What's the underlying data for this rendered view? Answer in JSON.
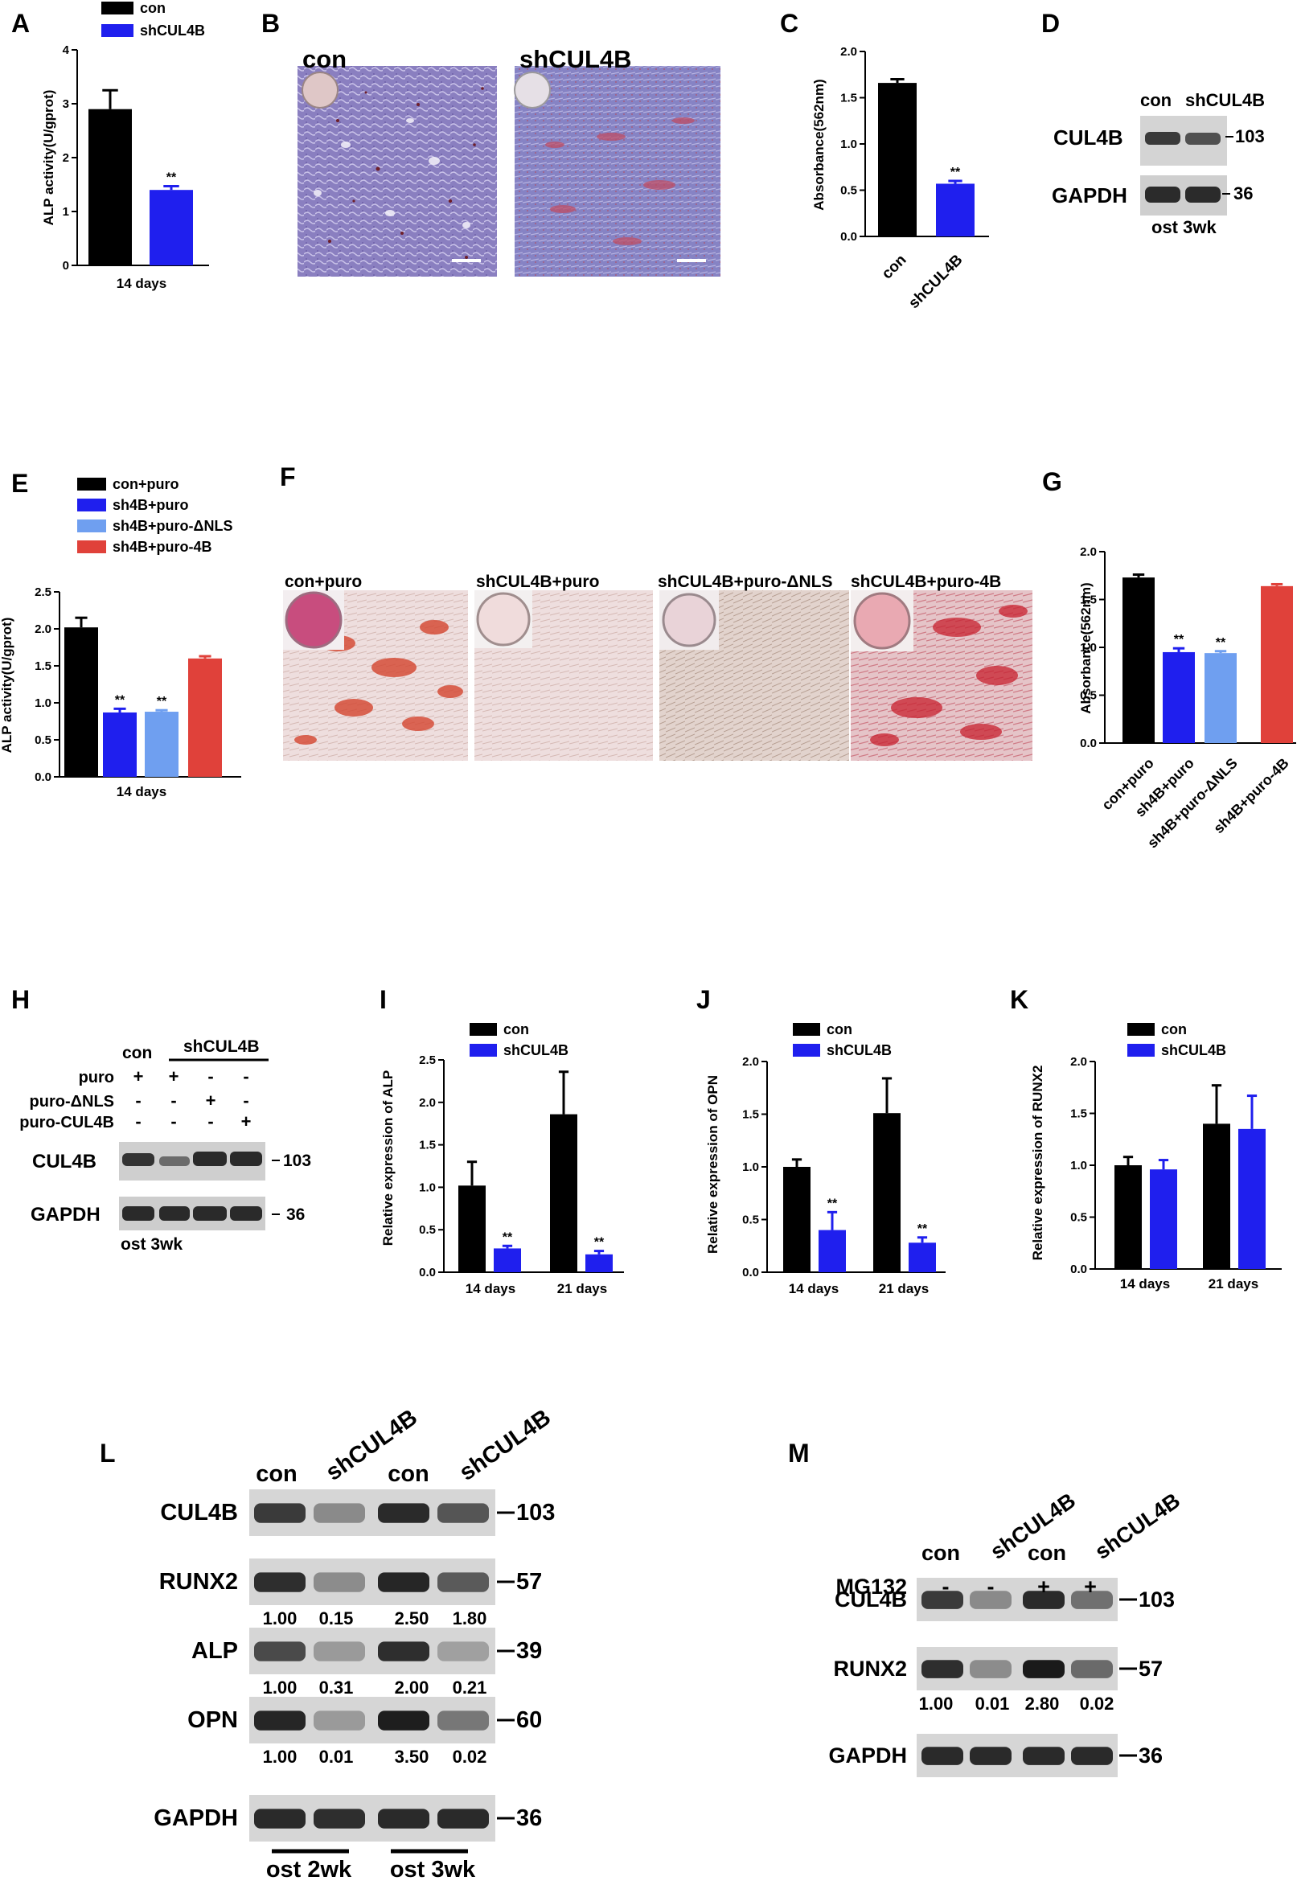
{
  "panels": {
    "A": {
      "letter": "A",
      "legend": [
        "con",
        "shCUL4B"
      ],
      "ylabel": "ALP activity(U/gprot)",
      "xlabel": "14 days",
      "sig": "**"
    },
    "B": {
      "letter": "B",
      "labels": [
        "con",
        "shCUL4B"
      ]
    },
    "C": {
      "letter": "C",
      "ylabel": "Absorbance(562nm)",
      "sig": "**"
    },
    "D": {
      "letter": "D",
      "lanes": [
        "con",
        "shCUL4B"
      ],
      "rows": [
        "CUL4B",
        "GAPDH"
      ],
      "markers": [
        "103",
        "36"
      ],
      "footer": "ost 3wk"
    },
    "E": {
      "letter": "E",
      "legend": [
        "con+puro",
        "sh4B+puro",
        "sh4B+puro-ΔNLS",
        "sh4B+puro-4B"
      ],
      "ylabel": "ALP activity(U/gprot)",
      "xlabel": "14 days",
      "sig": "**"
    },
    "F": {
      "letter": "F",
      "labels": [
        "con+puro",
        "shCUL4B+puro",
        "shCUL4B+puro-ΔNLS",
        "shCUL4B+puro-4B"
      ]
    },
    "G": {
      "letter": "G",
      "ylabel": "Absorbance(562nm)",
      "sig": "**"
    },
    "H": {
      "letter": "H",
      "header_con": "con",
      "header_sh": "shCUL4B",
      "conditions": [
        {
          "label": "puro",
          "marks": [
            "+",
            "+",
            "-",
            "-"
          ]
        },
        {
          "label": "puro-ΔNLS",
          "marks": [
            "-",
            "-",
            "+",
            "-"
          ]
        },
        {
          "label": "puro-CUL4B",
          "marks": [
            "-",
            "-",
            "-",
            "+"
          ]
        }
      ],
      "rows": [
        "CUL4B",
        "GAPDH"
      ],
      "markers": [
        "103",
        "36"
      ],
      "footer": "ost 3wk"
    },
    "I": {
      "letter": "I",
      "legend": [
        "con",
        "shCUL4B"
      ],
      "ylabel": [
        "Relative expression",
        "of ALP"
      ],
      "sig": "**"
    },
    "J": {
      "letter": "J",
      "legend": [
        "con",
        "shCUL4B"
      ],
      "ylabel": [
        "Relative expression",
        "of OPN"
      ],
      "sig": "**"
    },
    "K": {
      "letter": "K",
      "legend": [
        "con",
        "shCUL4B"
      ],
      "ylabel": [
        "Relative expression",
        "of RUNX2"
      ]
    },
    "L": {
      "letter": "L",
      "lanes": [
        "con",
        "shCUL4B",
        "con",
        "shCUL4B"
      ],
      "rows": [
        {
          "label": "CUL4B",
          "marker": "103",
          "values": []
        },
        {
          "label": "RUNX2",
          "marker": "57",
          "values": [
            "1.00",
            "0.15",
            "2.50",
            "1.80"
          ]
        },
        {
          "label": "ALP",
          "marker": "39",
          "values": [
            "1.00",
            "0.31",
            "2.00",
            "0.21"
          ]
        },
        {
          "label": "OPN",
          "marker": "60",
          "values": [
            "1.00",
            "0.01",
            "3.50",
            "0.02"
          ]
        },
        {
          "label": "GAPDH",
          "marker": "36",
          "values": []
        }
      ],
      "groups": [
        "ost 2wk",
        "ost 3wk"
      ]
    },
    "M": {
      "letter": "M",
      "lanes": [
        "con",
        "shCUL4B",
        "con",
        "shCUL4B"
      ],
      "mg132_label": "MG132",
      "mg132": [
        "-",
        "-",
        "+",
        "+"
      ],
      "rows": [
        {
          "label": "CUL4B",
          "marker": "103",
          "values": []
        },
        {
          "label": "RUNX2",
          "marker": "57",
          "values": [
            "1.00",
            "0.01",
            "2.80",
            "0.02"
          ]
        },
        {
          "label": "GAPDH",
          "marker": "36",
          "values": []
        }
      ]
    }
  },
  "chart_data": [
    {
      "panel": "A",
      "type": "bar",
      "categories": [
        "14 days"
      ],
      "series": [
        {
          "name": "con",
          "values": [
            2.9
          ],
          "error": [
            0.35
          ]
        },
        {
          "name": "shCUL4B",
          "values": [
            1.4
          ],
          "error": [
            0.07
          ]
        }
      ],
      "ylabel": "ALP activity(U/gprot)",
      "ylim": [
        0,
        4
      ],
      "yticks": [
        "0",
        "1",
        "2",
        "3",
        "4"
      ],
      "colors": [
        "#000000",
        "#1f1fee"
      ]
    },
    {
      "panel": "C",
      "type": "bar",
      "categories": [
        "con",
        "shCUL4B"
      ],
      "values": [
        1.66,
        0.57
      ],
      "error": [
        0.04,
        0.03
      ],
      "ylabel": "Absorbance(562nm)",
      "ylim": [
        0,
        2.0
      ],
      "yticks": [
        "0.0",
        "0.5",
        "1.0",
        "1.5",
        "2.0"
      ],
      "colors": [
        "#000000",
        "#1f1fee"
      ]
    },
    {
      "panel": "E",
      "type": "bar",
      "categories": [
        "14 days"
      ],
      "series": [
        {
          "name": "con+puro",
          "values": [
            2.02
          ],
          "error": [
            0.13
          ]
        },
        {
          "name": "sh4B+puro",
          "values": [
            0.87
          ],
          "error": [
            0.05
          ]
        },
        {
          "name": "sh4B+puro-ΔNLS",
          "values": [
            0.88
          ],
          "error": [
            0.02
          ]
        },
        {
          "name": "sh4B+puro-4B",
          "values": [
            1.6
          ],
          "error": [
            0.03
          ]
        }
      ],
      "ylabel": "ALP activity(U/gprot)",
      "ylim": [
        0,
        2.5
      ],
      "yticks": [
        "0.0",
        "0.5",
        "1.0",
        "1.5",
        "2.0",
        "2.5"
      ],
      "colors": [
        "#000000",
        "#1f1fee",
        "#6f9ff0",
        "#e0413a"
      ]
    },
    {
      "panel": "G",
      "type": "bar",
      "categories": [
        "con+puro",
        "sh4B+puro",
        "sh4B+puro-ΔNLS",
        "sh4B+puro-4B"
      ],
      "values": [
        1.73,
        0.95,
        0.94,
        1.64
      ],
      "error": [
        0.03,
        0.04,
        0.02,
        0.02
      ],
      "ylabel": "Absorbance(562nm)",
      "ylim": [
        0,
        2.0
      ],
      "yticks": [
        "0.0",
        "0.5",
        "1.0",
        "1.5",
        "2.0"
      ],
      "colors": [
        "#000000",
        "#1f1fee",
        "#6f9ff0",
        "#e0413a"
      ]
    },
    {
      "panel": "I",
      "type": "bar",
      "categories": [
        "14 days",
        "21 days"
      ],
      "series": [
        {
          "name": "con",
          "values": [
            1.02,
            1.86
          ],
          "error": [
            0.28,
            0.5
          ]
        },
        {
          "name": "shCUL4B",
          "values": [
            0.28,
            0.21
          ],
          "error": [
            0.03,
            0.04
          ]
        }
      ],
      "ylabel": "Relative expression of ALP",
      "ylim": [
        0,
        2.5
      ],
      "yticks": [
        "0.0",
        "0.5",
        "1.0",
        "1.5",
        "2.0",
        "2.5"
      ],
      "colors": [
        "#000000",
        "#1f1fee"
      ]
    },
    {
      "panel": "J",
      "type": "bar",
      "categories": [
        "14 days",
        "21 days"
      ],
      "series": [
        {
          "name": "con",
          "values": [
            1.0,
            1.51
          ],
          "error": [
            0.07,
            0.33
          ]
        },
        {
          "name": "shCUL4B",
          "values": [
            0.4,
            0.28
          ],
          "error": [
            0.17,
            0.05
          ]
        }
      ],
      "ylabel": "Relative expression of OPN",
      "ylim": [
        0,
        2.0
      ],
      "yticks": [
        "0.0",
        "0.5",
        "1.0",
        "1.5",
        "2.0"
      ],
      "colors": [
        "#000000",
        "#1f1fee"
      ]
    },
    {
      "panel": "K",
      "type": "bar",
      "categories": [
        "14 days",
        "21 days"
      ],
      "series": [
        {
          "name": "con",
          "values": [
            1.0,
            1.4
          ],
          "error": [
            0.08,
            0.37
          ]
        },
        {
          "name": "shCUL4B",
          "values": [
            0.96,
            1.35
          ],
          "error": [
            0.09,
            0.32
          ]
        }
      ],
      "ylabel": "Relative expression of RUNX2",
      "ylim": [
        0,
        2.0
      ],
      "yticks": [
        "0.0",
        "0.5",
        "1.0",
        "1.5",
        "2.0"
      ],
      "colors": [
        "#000000",
        "#1f1fee"
      ]
    }
  ]
}
